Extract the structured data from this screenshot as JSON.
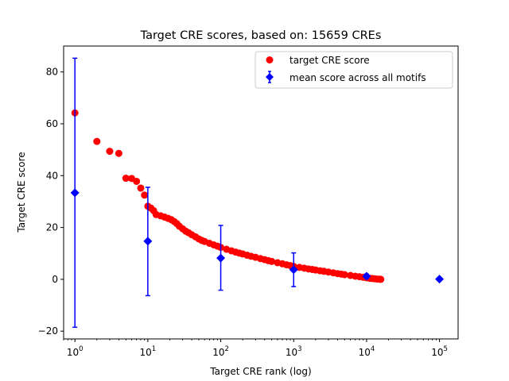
{
  "chart_data": {
    "type": "scatter",
    "title": "Target CRE scores, based on: 15659 CREs",
    "xlabel": "Target CRE rank (log)",
    "ylabel": "Target CRE score",
    "xscale": "log",
    "xlim": [
      0.7,
      180000
    ],
    "ylim": [
      -23,
      90
    ],
    "xticks": [
      {
        "value": 1,
        "base": "10",
        "exp": "0"
      },
      {
        "value": 10,
        "base": "10",
        "exp": "1"
      },
      {
        "value": 100,
        "base": "10",
        "exp": "2"
      },
      {
        "value": 1000,
        "base": "10",
        "exp": "3"
      },
      {
        "value": 10000,
        "base": "10",
        "exp": "4"
      },
      {
        "value": 100000,
        "base": "10",
        "exp": "5"
      }
    ],
    "yticks": [
      {
        "value": -20,
        "label": "−20"
      },
      {
        "value": 0,
        "label": "0"
      },
      {
        "value": 20,
        "label": "20"
      },
      {
        "value": 40,
        "label": "40"
      },
      {
        "value": 60,
        "label": "60"
      },
      {
        "value": 80,
        "label": "80"
      }
    ],
    "grid": false,
    "legend_position": "top-right",
    "series": [
      {
        "name": "target CRE score",
        "color": "#ff0000",
        "marker": "circle",
        "points": [
          {
            "x": 1,
            "y": 64.2
          },
          {
            "x": 2,
            "y": 53.2
          },
          {
            "x": 3,
            "y": 49.4
          },
          {
            "x": 4,
            "y": 48.6
          },
          {
            "x": 5,
            "y": 39.0
          },
          {
            "x": 6,
            "y": 38.9
          },
          {
            "x": 7,
            "y": 37.8
          },
          {
            "x": 8,
            "y": 35.2
          },
          {
            "x": 9,
            "y": 32.5
          },
          {
            "x": 10,
            "y": 28.2
          },
          {
            "x": 11,
            "y": 27.5
          },
          {
            "x": 12,
            "y": 26.5
          },
          {
            "x": 13,
            "y": 25.0
          },
          {
            "x": 15,
            "y": 24.5
          },
          {
            "x": 17,
            "y": 24.0
          },
          {
            "x": 19,
            "y": 23.5
          },
          {
            "x": 21,
            "y": 23.0
          },
          {
            "x": 23,
            "y": 22.3
          },
          {
            "x": 25,
            "y": 21.5
          },
          {
            "x": 27,
            "y": 20.5
          },
          {
            "x": 30,
            "y": 19.5
          },
          {
            "x": 33,
            "y": 18.6
          },
          {
            "x": 36,
            "y": 18.0
          },
          {
            "x": 40,
            "y": 17.2
          },
          {
            "x": 45,
            "y": 16.4
          },
          {
            "x": 50,
            "y": 15.6
          },
          {
            "x": 55,
            "y": 15.0
          },
          {
            "x": 60,
            "y": 14.6
          },
          {
            "x": 70,
            "y": 13.9
          },
          {
            "x": 80,
            "y": 13.3
          },
          {
            "x": 90,
            "y": 12.8
          },
          {
            "x": 100,
            "y": 12.3
          },
          {
            "x": 120,
            "y": 11.6
          },
          {
            "x": 140,
            "y": 11.0
          },
          {
            "x": 160,
            "y": 10.5
          },
          {
            "x": 180,
            "y": 10.1
          },
          {
            "x": 200,
            "y": 9.8
          },
          {
            "x": 230,
            "y": 9.3
          },
          {
            "x": 260,
            "y": 8.9
          },
          {
            "x": 300,
            "y": 8.5
          },
          {
            "x": 350,
            "y": 8.0
          },
          {
            "x": 400,
            "y": 7.6
          },
          {
            "x": 450,
            "y": 7.2
          },
          {
            "x": 500,
            "y": 6.9
          },
          {
            "x": 600,
            "y": 6.4
          },
          {
            "x": 700,
            "y": 6.0
          },
          {
            "x": 800,
            "y": 5.6
          },
          {
            "x": 900,
            "y": 5.3
          },
          {
            "x": 1000,
            "y": 5.0
          },
          {
            "x": 1200,
            "y": 4.6
          },
          {
            "x": 1400,
            "y": 4.3
          },
          {
            "x": 1600,
            "y": 4.0
          },
          {
            "x": 1800,
            "y": 3.8
          },
          {
            "x": 2000,
            "y": 3.6
          },
          {
            "x": 2300,
            "y": 3.3
          },
          {
            "x": 2600,
            "y": 3.1
          },
          {
            "x": 3000,
            "y": 2.8
          },
          {
            "x": 3500,
            "y": 2.5
          },
          {
            "x": 4000,
            "y": 2.2
          },
          {
            "x": 4500,
            "y": 2.0
          },
          {
            "x": 5000,
            "y": 1.8
          },
          {
            "x": 6000,
            "y": 1.5
          },
          {
            "x": 7000,
            "y": 1.2
          },
          {
            "x": 8000,
            "y": 1.0
          },
          {
            "x": 9000,
            "y": 0.8
          },
          {
            "x": 10000,
            "y": 0.6
          },
          {
            "x": 11000,
            "y": 0.4
          },
          {
            "x": 12000,
            "y": 0.3
          },
          {
            "x": 13000,
            "y": 0.2
          },
          {
            "x": 14000,
            "y": 0.1
          },
          {
            "x": 15000,
            "y": 0.05
          },
          {
            "x": 15659,
            "y": 0.0
          }
        ]
      },
      {
        "name": "mean score across all motifs",
        "color": "#0000ff",
        "marker": "diamond",
        "points": [
          {
            "x": 1,
            "y": 33.4,
            "ylow": -18.5,
            "yhigh": 85.3
          },
          {
            "x": 10,
            "y": 14.7,
            "ylow": -6.3,
            "yhigh": 35.5
          },
          {
            "x": 100,
            "y": 8.2,
            "ylow": -4.2,
            "yhigh": 20.8
          },
          {
            "x": 1000,
            "y": 3.7,
            "ylow": -2.8,
            "yhigh": 10.2
          },
          {
            "x": 10000,
            "y": 1.2,
            "ylow": 0.4,
            "yhigh": 2.0
          },
          {
            "x": 100000,
            "y": 0.1
          }
        ]
      }
    ]
  }
}
